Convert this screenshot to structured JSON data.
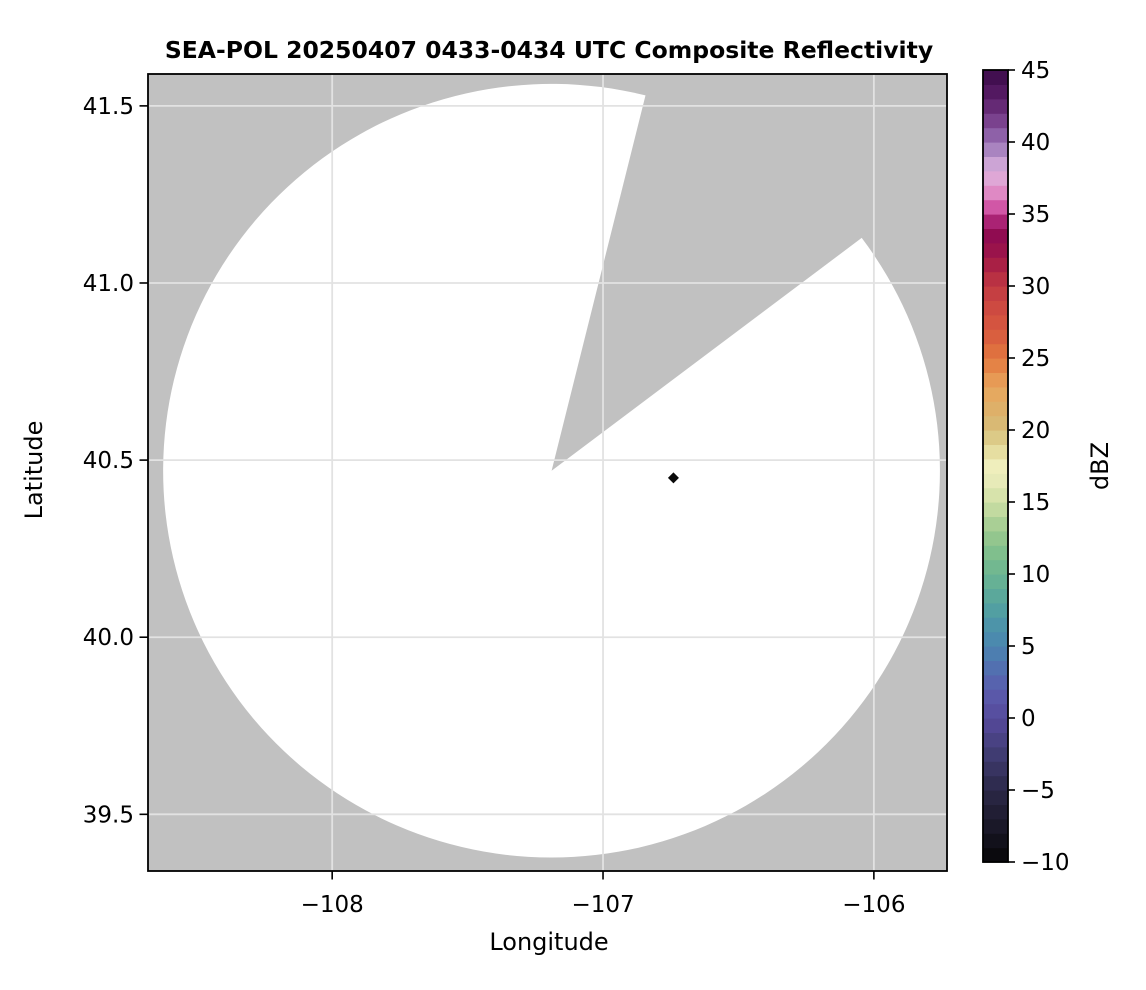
{
  "chart_data": {
    "type": "radar_ppi_map",
    "title": "SEA-POL 20250407 0433-0434 UTC Composite Reflectivity",
    "xlabel": "Longitude",
    "ylabel": "Latitude",
    "xlim": [
      -108.68,
      -105.73
    ],
    "ylim": [
      39.34,
      41.59
    ],
    "xticks": [
      -108,
      -107,
      -106
    ],
    "xtick_labels": [
      "−108",
      "−107",
      "−106"
    ],
    "yticks": [
      41.5,
      41.0,
      40.5,
      40.0,
      39.5
    ],
    "ytick_labels": [
      "41.5",
      "41.0",
      "40.5",
      "40.0",
      "39.5"
    ],
    "grid": true,
    "legend_position": "none",
    "radar": {
      "center_lon": -107.19,
      "center_lat": 40.47,
      "range_deg_lon": 1.434,
      "range_deg_lat": 1.092,
      "missing_sector_azimuth_deg": [
        14,
        53
      ]
    },
    "echoes": [
      {
        "lon": -106.74,
        "lat": 40.45,
        "approx_dbz": -10,
        "color": "#0a0a0a"
      }
    ],
    "colorbar": {
      "label": "dBZ",
      "vmin": -10,
      "vmax": 45,
      "step_dbz": 1,
      "ticks": [
        45,
        40,
        35,
        30,
        25,
        20,
        15,
        10,
        5,
        0,
        -5,
        -10
      ],
      "tick_labels": [
        "45",
        "40",
        "35",
        "30",
        "25",
        "20",
        "15",
        "10",
        "5",
        "0",
        "−5",
        "−10"
      ],
      "stops": [
        {
          "value": -10,
          "color": "#070707"
        },
        {
          "value": -7.5,
          "color": "#1a1828"
        },
        {
          "value": -5,
          "color": "#2b2847"
        },
        {
          "value": -2.5,
          "color": "#403c72"
        },
        {
          "value": 0,
          "color": "#564a9c"
        },
        {
          "value": 1.5,
          "color": "#5a58a9"
        },
        {
          "value": 3,
          "color": "#5569b0"
        },
        {
          "value": 5,
          "color": "#4a85b0"
        },
        {
          "value": 6.5,
          "color": "#4d94a9"
        },
        {
          "value": 8,
          "color": "#55a49e"
        },
        {
          "value": 10,
          "color": "#6bb592"
        },
        {
          "value": 11.5,
          "color": "#80bf8d"
        },
        {
          "value": 13,
          "color": "#9cc98f"
        },
        {
          "value": 15,
          "color": "#cfe0a5"
        },
        {
          "value": 16.5,
          "color": "#e7eab8"
        },
        {
          "value": 17.5,
          "color": "#efeebc"
        },
        {
          "value": 19,
          "color": "#e2d694"
        },
        {
          "value": 20,
          "color": "#d6bd7a"
        },
        {
          "value": 21.5,
          "color": "#deb069"
        },
        {
          "value": 23,
          "color": "#e8a55c"
        },
        {
          "value": 25,
          "color": "#e2783f"
        },
        {
          "value": 26.5,
          "color": "#d95f3f"
        },
        {
          "value": 28,
          "color": "#d14f41"
        },
        {
          "value": 30,
          "color": "#c13a42"
        },
        {
          "value": 31.5,
          "color": "#a92045"
        },
        {
          "value": 33,
          "color": "#930d4e"
        },
        {
          "value": 34,
          "color": "#8d0b53"
        },
        {
          "value": 35,
          "color": "#c73b94"
        },
        {
          "value": 36,
          "color": "#db73b8"
        },
        {
          "value": 37,
          "color": "#e29ed0"
        },
        {
          "value": 38,
          "color": "#dcb0dc"
        },
        {
          "value": 39,
          "color": "#bb97cd"
        },
        {
          "value": 40,
          "color": "#9770b3"
        },
        {
          "value": 41,
          "color": "#85519c"
        },
        {
          "value": 42,
          "color": "#6e3380"
        },
        {
          "value": 43,
          "color": "#5b2169"
        },
        {
          "value": 44,
          "color": "#4a1158"
        },
        {
          "value": 45,
          "color": "#3a0c47"
        }
      ]
    },
    "colors": {
      "figure_background": "#ffffff",
      "nodata_fill": "#c1c1c1",
      "coverage_fill": "#ffffff",
      "grid": "#e2e2e2",
      "frame": "#000000",
      "text": "#000000"
    }
  }
}
